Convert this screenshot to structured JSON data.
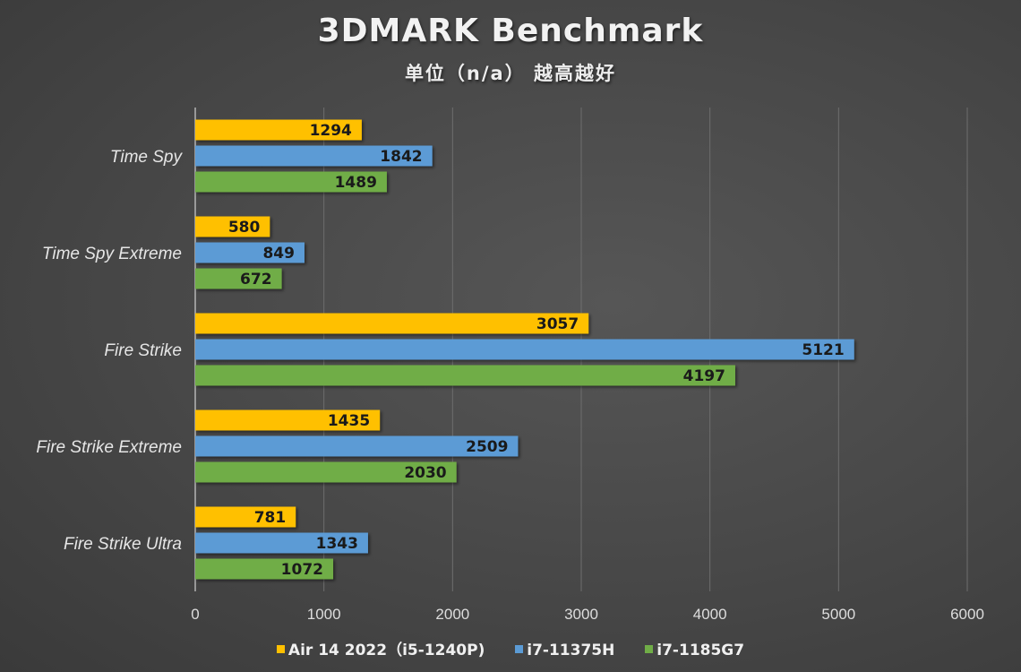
{
  "chart_data": {
    "type": "bar",
    "orientation": "horizontal",
    "title": "3DMARK Benchmark",
    "subtitle": "单位（n/a） 越高越好",
    "categories": [
      "Time Spy",
      "Time Spy Extreme",
      "Fire Strike",
      "Fire Strike Extreme",
      "Fire Strike Ultra"
    ],
    "series": [
      {
        "name": "Air 14 2022（i5-1240P)",
        "color": "#ffc000",
        "values": [
          1294,
          580,
          3057,
          1435,
          781
        ]
      },
      {
        "name": "i7-11375H",
        "color": "#5b9bd5",
        "values": [
          1842,
          849,
          5121,
          2509,
          1343
        ]
      },
      {
        "name": "i7-1185G7",
        "color": "#70ad47",
        "values": [
          1489,
          672,
          4197,
          2030,
          1072
        ]
      }
    ],
    "xlim": [
      0,
      6000
    ],
    "xticks": [
      "0",
      "1000",
      "2000",
      "3000",
      "4000",
      "5000",
      "6000"
    ],
    "xlabel": "",
    "ylabel": "",
    "grid": true,
    "legend_position": "bottom"
  }
}
